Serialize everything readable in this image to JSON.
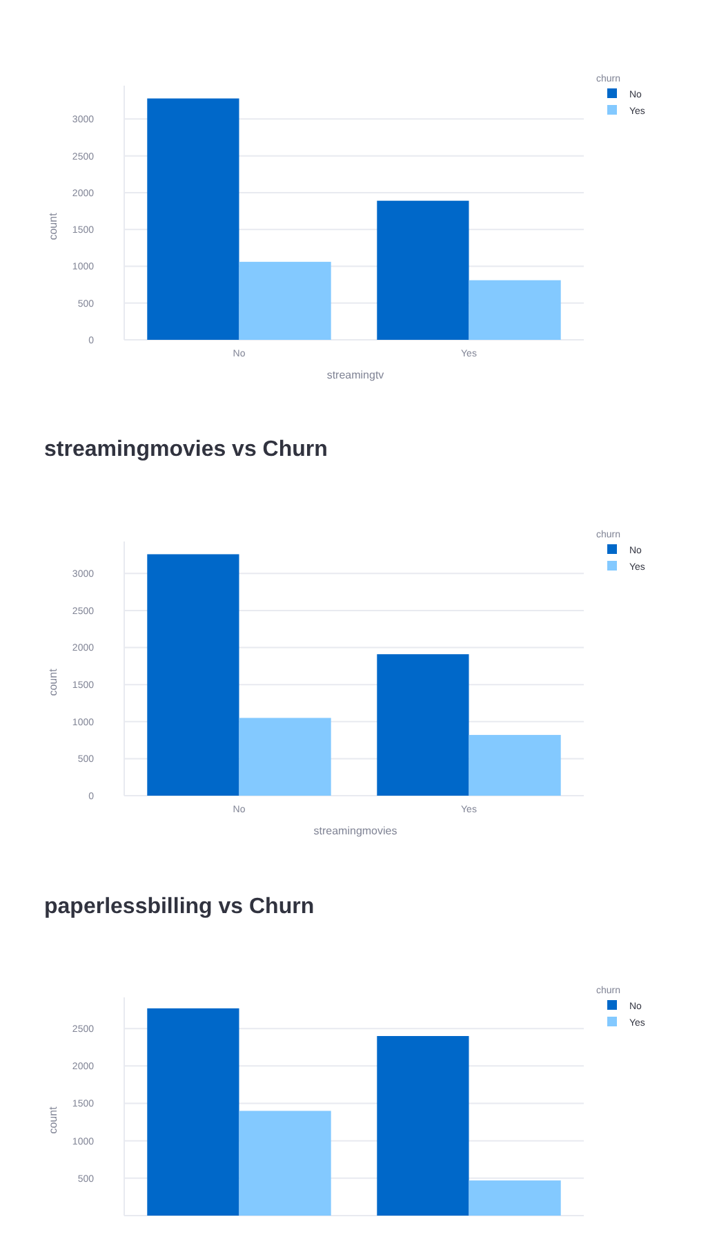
{
  "chart_data": [
    {
      "type": "bar",
      "categories": [
        "No",
        "Yes"
      ],
      "series": [
        {
          "name": "No",
          "color": "#0068c9",
          "values": [
            3280,
            1890
          ]
        },
        {
          "name": "Yes",
          "color": "#83c9ff",
          "values": [
            1060,
            810
          ]
        }
      ],
      "xlabel": "streamingtv",
      "ylabel": "count",
      "legend_title": "churn",
      "legend": "top right",
      "grid": "y",
      "ylim": [
        0,
        3454
      ],
      "yticks": [
        0,
        500,
        1000,
        1500,
        2000,
        2500,
        3000
      ]
    },
    {
      "type": "bar",
      "title": "streamingmovies vs Churn",
      "categories": [
        "No",
        "Yes"
      ],
      "series": [
        {
          "name": "No",
          "color": "#0068c9",
          "values": [
            3260,
            1910
          ]
        },
        {
          "name": "Yes",
          "color": "#83c9ff",
          "values": [
            1050,
            820
          ]
        }
      ],
      "xlabel": "streamingmovies",
      "ylabel": "count",
      "legend_title": "churn",
      "legend": "top right",
      "grid": "y",
      "ylim": [
        0,
        3432
      ],
      "yticks": [
        0,
        500,
        1000,
        1500,
        2000,
        2500,
        3000
      ]
    },
    {
      "type": "bar",
      "title": "paperlessbilling vs Churn",
      "categories": [
        null,
        null
      ],
      "series": [
        {
          "name": "No",
          "color": "#0068c9",
          "values": [
            2770,
            2400
          ]
        },
        {
          "name": "Yes",
          "color": "#83c9ff",
          "values": [
            1400,
            470
          ]
        }
      ],
      "ylabel": "count",
      "legend_title": "churn",
      "legend": "top right",
      "grid": "y",
      "ylim": [
        0,
        2917
      ],
      "yticks": [
        500,
        1000,
        1500,
        2000,
        2500
      ]
    }
  ]
}
